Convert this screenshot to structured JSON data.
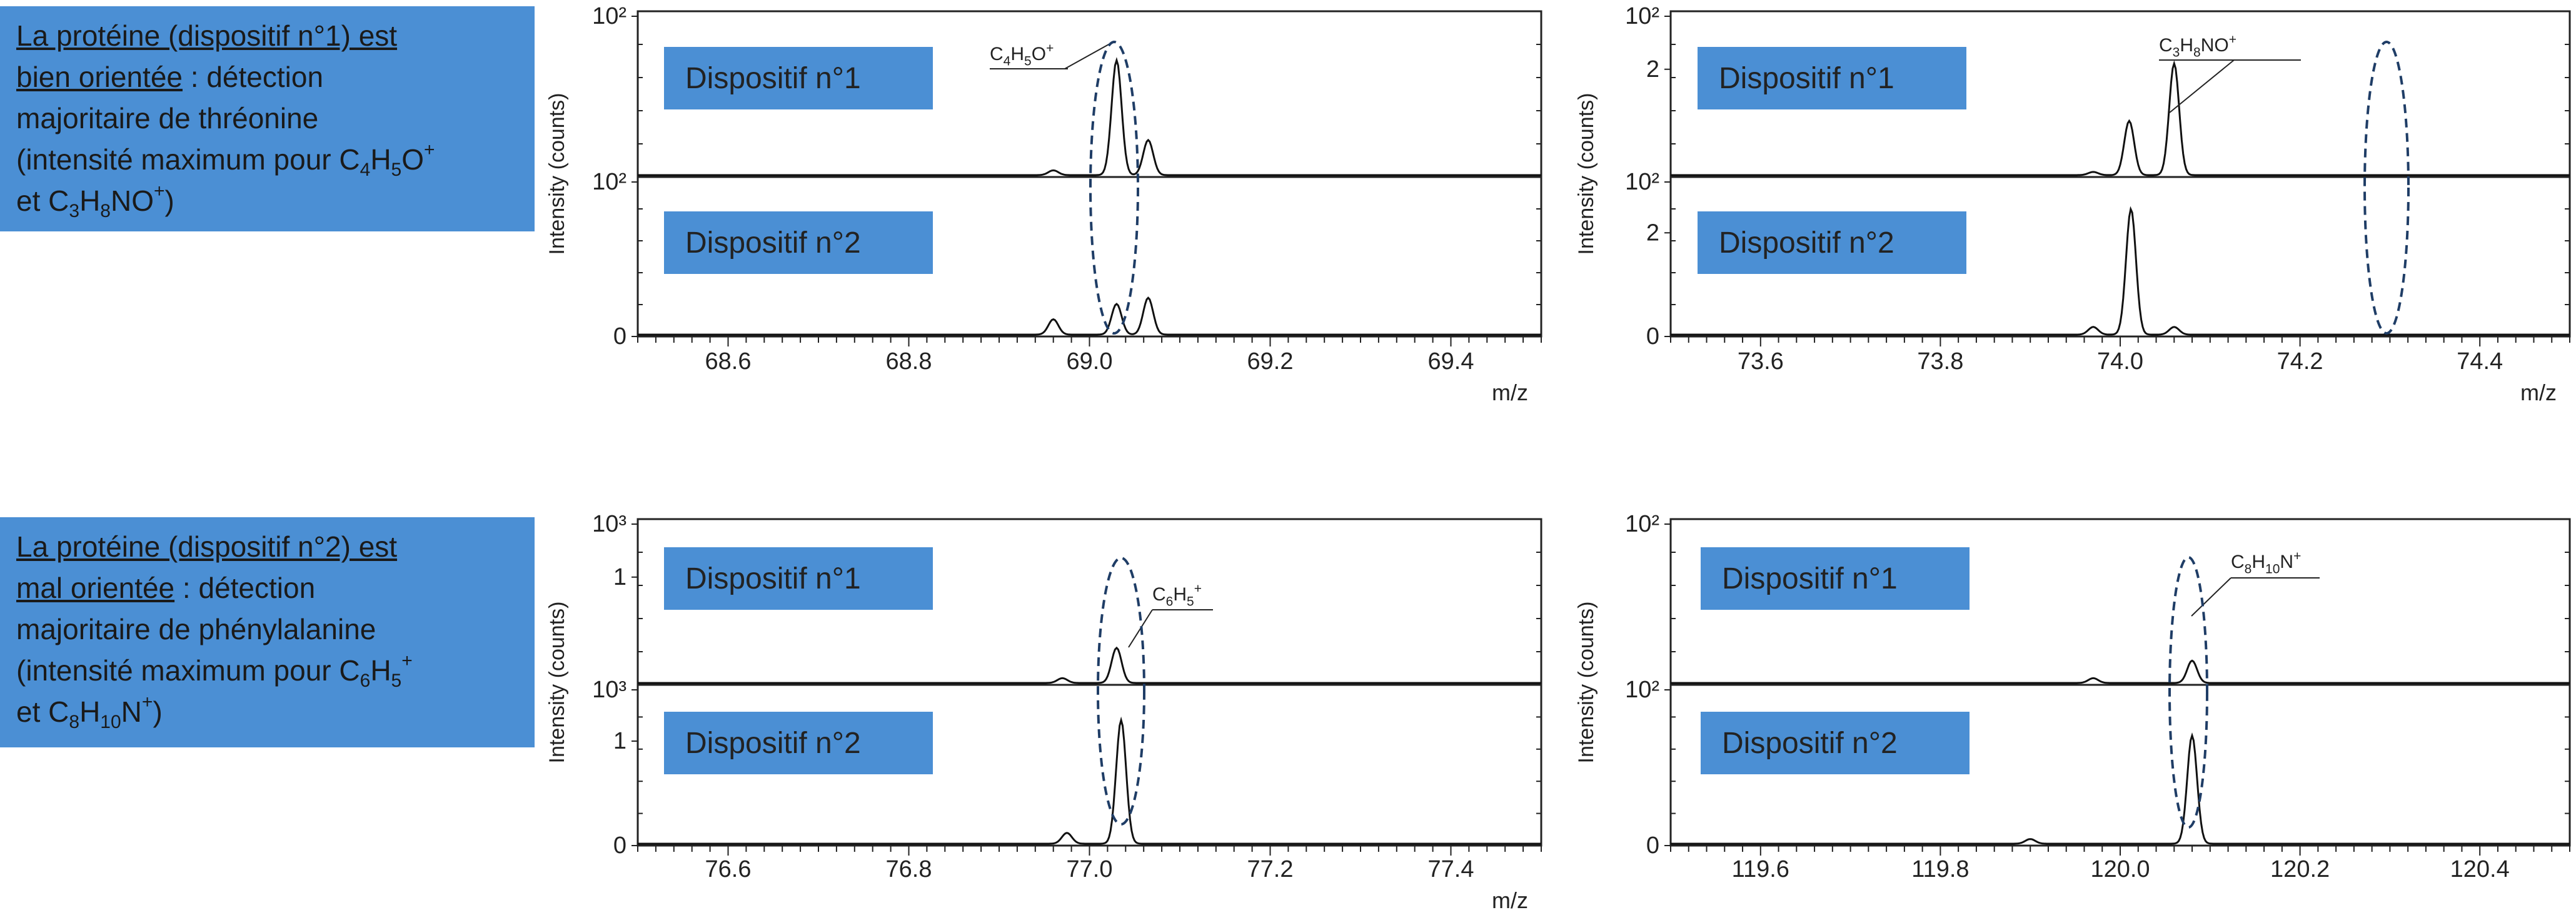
{
  "annotations": {
    "top": {
      "line1": "La protéine (dispositif n°1) est",
      "line2_u": "bien orientée",
      "line2_rest": " : détection",
      "line3": "majoritaire de thréonine",
      "line4_pre": "(intensité maximum pour C",
      "line4_s1": "4",
      "line4_m1": "H",
      "line4_s2": "5",
      "line4_m2": "O",
      "line4_sup": "+",
      "line5_pre": "et C",
      "line5_s1": "3",
      "line5_m1": "H",
      "line5_s2": "8",
      "line5_m2": "NO",
      "line5_sup": "+",
      "line5_end": ")"
    },
    "bottom": {
      "line1": "La protéine (dispositif n°2) est",
      "line2_u": "mal orientée",
      "line2_rest": " : détection",
      "line3": "majoritaire de phénylalanine",
      "line4_pre": "(intensité maximum pour C",
      "line4_s1": "6",
      "line4_m1": "H",
      "line4_s2": "5",
      "line4_sup": "+",
      "line5_pre": "et C",
      "line5_s1": "8",
      "line5_m1": "H",
      "line5_s2": "10",
      "line5_m2": "N",
      "line5_sup": "+",
      "line5_end": ")"
    }
  },
  "chart_data": [
    {
      "type": "line",
      "ylabel": "Intensity (counts)",
      "xlabel": "m/z",
      "xlim": [
        68.5,
        69.5
      ],
      "xticks": [
        "68.6",
        "68.8",
        "69.0",
        "69.2",
        "69.4"
      ],
      "ion_label": "C4H5O+",
      "panels": [
        {
          "label": "Dispositif n°1",
          "yticks": [
            "10²"
          ],
          "peaks": [
            [
              68.96,
              0.03
            ],
            [
              69.03,
              0.72
            ],
            [
              69.065,
              0.22
            ]
          ]
        },
        {
          "label": "Dispositif n°2",
          "yticks": [
            "10²",
            "0"
          ],
          "peaks": [
            [
              68.96,
              0.1
            ],
            [
              69.03,
              0.2
            ],
            [
              69.065,
              0.24
            ]
          ]
        }
      ]
    },
    {
      "type": "line",
      "ylabel": "Intensity (counts)",
      "xlabel": "m/z",
      "xlim": [
        73.5,
        74.5
      ],
      "xticks": [
        "73.6",
        "73.8",
        "74.0",
        "74.2",
        "74.4"
      ],
      "ion_label": "C3H8NO+",
      "panels": [
        {
          "label": "Dispositif n°1",
          "yticks": [
            "10²",
            "2"
          ],
          "peaks": [
            [
              73.97,
              0.02
            ],
            [
              74.01,
              0.34
            ],
            [
              74.06,
              0.7
            ]
          ]
        },
        {
          "label": "Dispositif n°2",
          "yticks": [
            "10²",
            "2",
            "0"
          ],
          "peaks": [
            [
              73.97,
              0.05
            ],
            [
              74.012,
              0.82
            ],
            [
              74.06,
              0.05
            ]
          ]
        }
      ]
    },
    {
      "type": "line",
      "ylabel": "Intensity (counts)",
      "xlabel": "m/z",
      "xlim": [
        76.5,
        77.5
      ],
      "xticks": [
        "76.6",
        "76.8",
        "77.0",
        "77.2",
        "77.4"
      ],
      "ion_label": "C6H5+",
      "panels": [
        {
          "label": "Dispositif n°1",
          "yticks": [
            "10³",
            "1"
          ],
          "peaks": [
            [
              76.97,
              0.03
            ],
            [
              77.03,
              0.22
            ]
          ]
        },
        {
          "label": "Dispositif n°2",
          "yticks": [
            "10³",
            "1",
            "0"
          ],
          "peaks": [
            [
              76.975,
              0.07
            ],
            [
              77.035,
              0.8
            ]
          ]
        }
      ]
    },
    {
      "type": "line",
      "ylabel": "Intensity (counts)",
      "xlabel": "",
      "xlim": [
        119.5,
        120.5
      ],
      "xticks": [
        "119.6",
        "119.8",
        "120.0",
        "120.2",
        "120.4"
      ],
      "ion_label": "C8H10N+",
      "panels": [
        {
          "label": "Dispositif n°1",
          "yticks": [
            "10²"
          ],
          "peaks": [
            [
              119.97,
              0.03
            ],
            [
              120.08,
              0.14
            ]
          ]
        },
        {
          "label": "Dispositif n°2",
          "yticks": [
            "10²",
            "0"
          ],
          "peaks": [
            [
              119.9,
              0.03
            ],
            [
              120.08,
              0.7
            ]
          ]
        }
      ]
    }
  ],
  "colors": {
    "label_box": "#4b8fd4",
    "annotation_box": "#4b8fd4",
    "trace": "#111111",
    "ellipse": "#1f3d66"
  }
}
